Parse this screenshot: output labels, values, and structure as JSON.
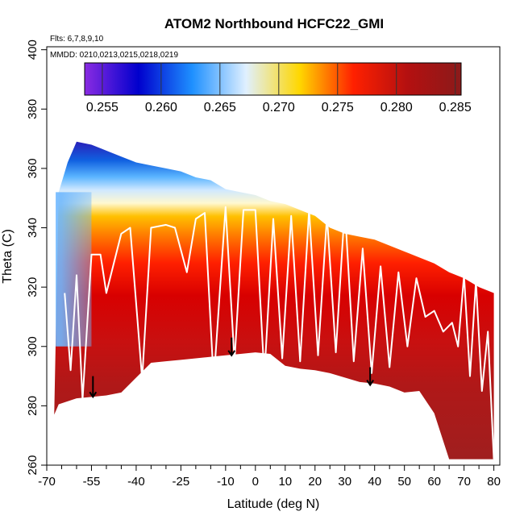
{
  "chart_data": {
    "type": "heatmap",
    "title": "ATOM2 Northbound HCFC22_GMI",
    "subtitle_flights": "Flts: 6,7,8,9,10",
    "subtitle_dates": "MMDD: 0210,0213,0215,0218,0219",
    "xlabel": "Latitude (deg N)",
    "ylabel": "Theta (C)",
    "xlim": [
      -70,
      82
    ],
    "ylim": [
      260,
      401
    ],
    "x_ticks": [
      -70,
      -55,
      -40,
      -25,
      -10,
      0,
      10,
      20,
      30,
      40,
      50,
      60,
      70,
      80
    ],
    "x_tick_labels": [
      "-70",
      "-55",
      "-40",
      "-25",
      "-10",
      "0",
      "10",
      "20",
      "30",
      "40",
      "50",
      "60",
      "70",
      "80"
    ],
    "x_minor_ticks": [
      -65,
      -60,
      -50,
      -45,
      -35,
      -30,
      -20,
      -15,
      -5,
      5,
      15,
      25,
      35,
      45,
      55,
      65,
      75
    ],
    "y_ticks": [
      260,
      280,
      300,
      320,
      340,
      360,
      380,
      400
    ],
    "y_tick_labels": [
      "260",
      "280",
      "300",
      "320",
      "340",
      "360",
      "380",
      "400"
    ],
    "colorbar": {
      "range": [
        0.2535,
        0.2855
      ],
      "ticks": [
        0.255,
        0.26,
        0.265,
        0.27,
        0.275,
        0.28,
        0.285
      ],
      "tick_labels": [
        "0.255",
        "0.260",
        "0.265",
        "0.270",
        "0.275",
        "0.280",
        "0.285"
      ],
      "colors": [
        "#8a2be2",
        "#0000cd",
        "#1e90ff",
        "#e0f0ff",
        "#ffd700",
        "#ff2000",
        "#b41010",
        "#8b1a1a"
      ]
    },
    "surface_profile": {
      "lat": [
        -67.5,
        -66,
        -60,
        -55,
        -50,
        -45,
        -40,
        -35,
        -30,
        -25,
        -20,
        -15,
        -10,
        -5,
        0,
        5,
        10,
        15,
        20,
        25,
        30,
        35,
        40,
        45,
        50,
        55,
        60,
        65,
        70,
        75,
        80
      ],
      "theta": [
        277,
        280.5,
        282.5,
        283,
        283.5,
        284.5,
        289.5,
        294.5,
        295,
        295.5,
        296,
        296.5,
        297,
        297.5,
        298,
        297.5,
        293.5,
        292.5,
        292,
        291,
        289.5,
        288,
        287.5,
        286.5,
        284.5,
        285,
        277.5,
        262,
        262,
        262,
        262
      ]
    },
    "top_profile": {
      "lat": [
        -66,
        -63,
        -60,
        -55,
        -50,
        -45,
        -40,
        -35,
        -30,
        -25,
        -20,
        -15,
        -10,
        -5,
        0,
        5,
        10,
        15,
        20,
        25,
        30,
        35,
        40,
        45,
        50,
        55,
        60,
        65,
        70,
        75,
        80
      ],
      "theta": [
        352,
        362,
        369,
        368,
        366,
        364,
        362,
        361,
        360,
        359,
        357,
        356,
        353,
        352,
        351,
        349,
        348,
        346,
        344,
        340,
        338,
        337,
        336,
        334,
        332,
        330,
        328,
        325,
        323,
        320,
        318
      ]
    },
    "flight_track": {
      "lat": [
        -64,
        -62,
        -60,
        -58,
        -55,
        -52,
        -50,
        -45,
        -42,
        -38,
        -35,
        -30,
        -27,
        -23,
        -20,
        -17,
        -14,
        -10,
        -7,
        -4,
        0,
        3,
        6,
        9,
        12,
        15,
        18,
        21,
        24,
        27,
        30,
        33,
        36,
        39,
        42,
        45,
        48,
        51,
        54,
        57,
        60,
        63,
        66,
        68,
        70,
        72,
        74,
        76,
        78,
        80
      ],
      "theta": [
        318,
        292,
        324,
        282,
        331,
        331,
        318,
        338,
        340,
        289,
        340,
        341,
        340,
        325,
        343,
        345,
        288,
        347,
        295,
        346,
        346,
        290,
        343,
        296,
        344,
        295,
        346,
        297,
        344,
        298,
        347,
        295,
        333,
        291,
        327,
        293,
        325,
        300,
        323,
        310,
        312,
        305,
        308,
        300,
        324,
        290,
        322,
        285,
        305,
        262
      ]
    },
    "annotations": [
      {
        "type": "arrow-down",
        "lat": -54.5,
        "theta_from": 290,
        "theta_to": 283
      },
      {
        "type": "arrow-down",
        "lat": -8,
        "theta_from": 303,
        "theta_to": 297
      },
      {
        "type": "arrow-down",
        "lat": 38.5,
        "theta_from": 293,
        "theta_to": 287
      }
    ]
  }
}
